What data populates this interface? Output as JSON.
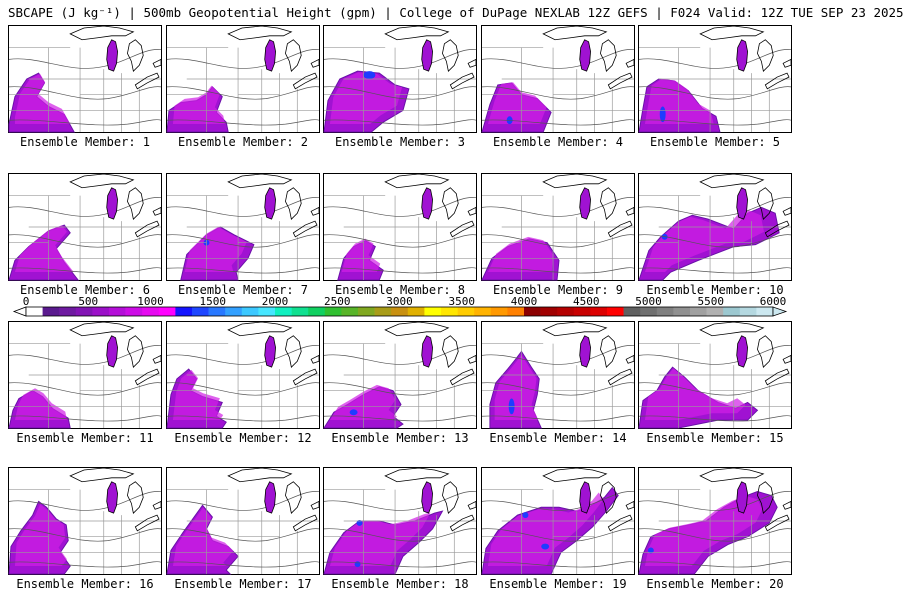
{
  "title": "SBCAPE (J kg⁻¹) | 500mb Geopotential Height (gpm) | College of DuPage NEXLAB 12Z GEFS | F024 Valid: 12Z TUE SEP 23 2025",
  "colorbar": {
    "ticks": [
      "0",
      "500",
      "1000",
      "1500",
      "2000",
      "2500",
      "3000",
      "3500",
      "4000",
      "4500",
      "5000",
      "5500",
      "6000"
    ],
    "colors": [
      "#ffffff",
      "#5a1a8e",
      "#6e1aa0",
      "#8214b4",
      "#9b10c8",
      "#b40ed8",
      "#cd0ce6",
      "#e60af0",
      "#ff00ff",
      "#1414ff",
      "#1e46ff",
      "#2878ff",
      "#32a0ff",
      "#3cc8ff",
      "#46e6ff",
      "#10f0c0",
      "#10e090",
      "#10d060",
      "#30c030",
      "#58b428",
      "#80a820",
      "#a89c18",
      "#c89010",
      "#e0b000",
      "#ffff00",
      "#ffe600",
      "#ffcc00",
      "#ffb300",
      "#ff9900",
      "#ff8000",
      "#8c0000",
      "#a00000",
      "#b40000",
      "#c80000",
      "#dc0000",
      "#ff0000",
      "#606060",
      "#707070",
      "#808080",
      "#909090",
      "#a0a0a0",
      "#b0b0b0",
      "#9cc8d0",
      "#b4d8e0",
      "#cce8f0"
    ]
  },
  "panels": [
    {
      "label": "Ensemble Member: 1"
    },
    {
      "label": "Ensemble Member: 2"
    },
    {
      "label": "Ensemble Member: 3"
    },
    {
      "label": "Ensemble Member: 4"
    },
    {
      "label": "Ensemble Member: 5"
    },
    {
      "label": "Ensemble Member: 6"
    },
    {
      "label": "Ensemble Member: 7"
    },
    {
      "label": "Ensemble Member: 8"
    },
    {
      "label": "Ensemble Member: 9"
    },
    {
      "label": "Ensemble Member: 10"
    },
    {
      "label": "Ensemble Member: 11"
    },
    {
      "label": "Ensemble Member: 12"
    },
    {
      "label": "Ensemble Member: 13"
    },
    {
      "label": "Ensemble Member: 14"
    },
    {
      "label": "Ensemble Member: 15"
    },
    {
      "label": "Ensemble Member: 16"
    },
    {
      "label": "Ensemble Member: 17"
    },
    {
      "label": "Ensemble Member: 18"
    },
    {
      "label": "Ensemble Member: 19"
    },
    {
      "label": "Ensemble Member: 20"
    }
  ]
}
